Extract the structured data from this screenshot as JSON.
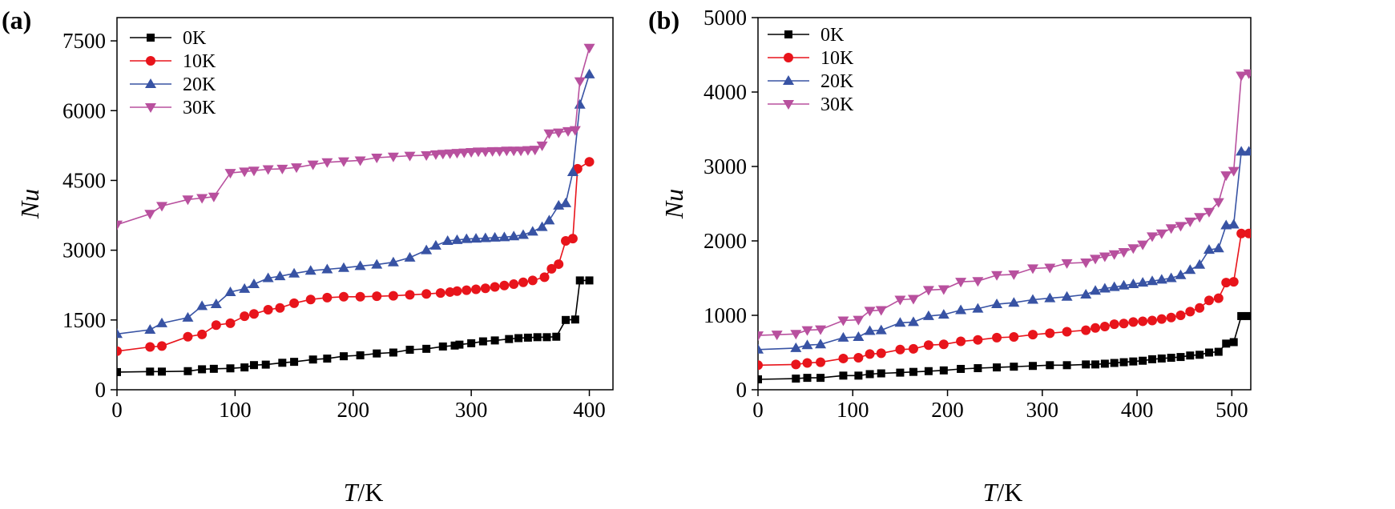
{
  "chart_data": [
    {
      "type": "line",
      "panel_label": "(a)",
      "xlabel_italic": "T",
      "xlabel_suffix": "/K",
      "ylabel": "Nu",
      "xlim": [
        0,
        420
      ],
      "ylim": [
        0,
        8000
      ],
      "xticks": [
        0,
        100,
        200,
        300,
        400
      ],
      "yticks": [
        0,
        1500,
        3000,
        4500,
        6000,
        7500
      ],
      "legend_position": "top-left",
      "series": [
        {
          "name": "0K",
          "color": "#000000",
          "marker": "square",
          "x": [
            0,
            28,
            38,
            60,
            72,
            82,
            96,
            108,
            116,
            126,
            140,
            150,
            166,
            178,
            192,
            206,
            220,
            234,
            248,
            262,
            276,
            286,
            290,
            300,
            310,
            320,
            332,
            340,
            348,
            356,
            364,
            372,
            380,
            388,
            392,
            400
          ],
          "y": [
            380,
            390,
            390,
            400,
            440,
            450,
            460,
            480,
            530,
            540,
            580,
            600,
            650,
            670,
            720,
            740,
            780,
            800,
            860,
            880,
            930,
            950,
            970,
            1000,
            1040,
            1060,
            1090,
            1110,
            1120,
            1130,
            1130,
            1140,
            1500,
            1510,
            2350,
            2350
          ]
        },
        {
          "name": "10K",
          "color": "#e8141b",
          "marker": "circle",
          "x": [
            0,
            28,
            38,
            60,
            72,
            84,
            96,
            108,
            116,
            128,
            138,
            150,
            164,
            178,
            192,
            206,
            220,
            234,
            248,
            262,
            274,
            282,
            288,
            296,
            304,
            312,
            320,
            328,
            336,
            344,
            352,
            362,
            368,
            374,
            380,
            386,
            390,
            400
          ],
          "y": [
            830,
            920,
            940,
            1140,
            1190,
            1390,
            1430,
            1580,
            1630,
            1720,
            1760,
            1860,
            1940,
            1980,
            2000,
            2000,
            2010,
            2020,
            2040,
            2060,
            2080,
            2100,
            2120,
            2140,
            2160,
            2180,
            2210,
            2240,
            2270,
            2310,
            2350,
            2420,
            2600,
            2700,
            3200,
            3250,
            4750,
            4900
          ]
        },
        {
          "name": "20K",
          "color": "#3853a4",
          "marker": "triangle-up",
          "x": [
            0,
            28,
            38,
            60,
            72,
            84,
            96,
            108,
            116,
            128,
            138,
            150,
            164,
            178,
            192,
            206,
            220,
            234,
            248,
            262,
            270,
            280,
            288,
            296,
            304,
            312,
            320,
            328,
            336,
            344,
            352,
            360,
            366,
            374,
            380,
            386,
            392,
            400
          ],
          "y": [
            1200,
            1290,
            1430,
            1550,
            1800,
            1840,
            2100,
            2170,
            2270,
            2400,
            2440,
            2500,
            2560,
            2590,
            2620,
            2660,
            2690,
            2740,
            2840,
            3000,
            3100,
            3200,
            3220,
            3240,
            3250,
            3260,
            3270,
            3280,
            3300,
            3330,
            3400,
            3500,
            3640,
            3960,
            4010,
            4680,
            6130,
            6780
          ]
        },
        {
          "name": "30K",
          "color": "#b8509e",
          "marker": "triangle-down",
          "x": [
            0,
            28,
            38,
            60,
            72,
            82,
            96,
            108,
            116,
            128,
            140,
            152,
            166,
            178,
            192,
            206,
            220,
            234,
            248,
            262,
            270,
            276,
            282,
            288,
            294,
            300,
            306,
            312,
            318,
            324,
            330,
            336,
            342,
            348,
            354,
            360,
            366,
            374,
            382,
            388,
            392,
            400
          ],
          "y": [
            3550,
            3780,
            3950,
            4090,
            4120,
            4150,
            4660,
            4690,
            4710,
            4740,
            4750,
            4780,
            4840,
            4890,
            4910,
            4930,
            4990,
            5010,
            5030,
            5040,
            5060,
            5070,
            5080,
            5090,
            5100,
            5110,
            5120,
            5120,
            5130,
            5130,
            5140,
            5140,
            5140,
            5150,
            5160,
            5250,
            5510,
            5530,
            5560,
            5580,
            6630,
            7350
          ]
        }
      ]
    },
    {
      "type": "line",
      "panel_label": "(b)",
      "xlabel_italic": "T",
      "xlabel_suffix": "/K",
      "ylabel": "Nu",
      "xlim": [
        0,
        520
      ],
      "ylim": [
        0,
        5000
      ],
      "xticks": [
        0,
        100,
        200,
        300,
        400,
        500
      ],
      "yticks": [
        0,
        1000,
        2000,
        3000,
        4000,
        5000
      ],
      "legend_position": "top-left",
      "series": [
        {
          "name": "0K",
          "color": "#000000",
          "marker": "square",
          "x": [
            0,
            40,
            52,
            66,
            90,
            106,
            118,
            130,
            150,
            164,
            180,
            196,
            214,
            232,
            252,
            270,
            290,
            308,
            326,
            346,
            356,
            366,
            376,
            386,
            396,
            406,
            416,
            426,
            436,
            446,
            456,
            466,
            476,
            486,
            494,
            502,
            510,
            518
          ],
          "y": [
            140,
            150,
            160,
            160,
            190,
            190,
            210,
            220,
            230,
            240,
            250,
            260,
            280,
            290,
            300,
            310,
            320,
            330,
            330,
            340,
            340,
            350,
            360,
            370,
            380,
            390,
            410,
            420,
            430,
            440,
            460,
            470,
            500,
            510,
            620,
            640,
            990,
            990
          ]
        },
        {
          "name": "10K",
          "color": "#e8141b",
          "marker": "circle",
          "x": [
            0,
            40,
            52,
            66,
            90,
            106,
            118,
            130,
            150,
            164,
            180,
            196,
            214,
            232,
            252,
            270,
            290,
            308,
            326,
            346,
            356,
            366,
            376,
            386,
            396,
            406,
            416,
            426,
            436,
            446,
            456,
            466,
            476,
            486,
            494,
            502,
            510,
            518
          ],
          "y": [
            330,
            340,
            360,
            370,
            420,
            430,
            480,
            490,
            540,
            550,
            600,
            610,
            650,
            670,
            700,
            710,
            740,
            760,
            780,
            800,
            830,
            850,
            880,
            890,
            910,
            920,
            930,
            950,
            970,
            1000,
            1050,
            1100,
            1200,
            1230,
            1440,
            1450,
            2100,
            2100
          ]
        },
        {
          "name": "20K",
          "color": "#3853a4",
          "marker": "triangle-up",
          "x": [
            0,
            40,
            52,
            66,
            90,
            106,
            118,
            130,
            150,
            164,
            180,
            196,
            214,
            232,
            252,
            270,
            290,
            308,
            326,
            346,
            356,
            366,
            376,
            386,
            396,
            406,
            416,
            426,
            436,
            446,
            456,
            466,
            476,
            486,
            494,
            502,
            510,
            518
          ],
          "y": [
            540,
            560,
            600,
            610,
            700,
            710,
            790,
            800,
            900,
            910,
            990,
            1010,
            1070,
            1090,
            1150,
            1170,
            1210,
            1230,
            1250,
            1280,
            1330,
            1360,
            1380,
            1400,
            1420,
            1440,
            1460,
            1480,
            1500,
            1540,
            1610,
            1680,
            1880,
            1900,
            2210,
            2220,
            3200,
            3200
          ]
        },
        {
          "name": "30K",
          "color": "#b8509e",
          "marker": "triangle-down",
          "x": [
            0,
            20,
            40,
            52,
            66,
            90,
            106,
            118,
            130,
            150,
            164,
            180,
            196,
            214,
            232,
            252,
            270,
            290,
            308,
            326,
            346,
            356,
            366,
            376,
            386,
            396,
            406,
            416,
            426,
            436,
            446,
            456,
            466,
            476,
            486,
            494,
            502,
            510,
            518
          ],
          "y": [
            730,
            740,
            750,
            800,
            810,
            930,
            940,
            1060,
            1070,
            1210,
            1220,
            1340,
            1350,
            1450,
            1460,
            1540,
            1550,
            1630,
            1640,
            1700,
            1710,
            1760,
            1790,
            1820,
            1850,
            1900,
            1950,
            2060,
            2100,
            2170,
            2200,
            2260,
            2320,
            2390,
            2520,
            2880,
            2940,
            4220,
            4250
          ]
        }
      ]
    }
  ]
}
